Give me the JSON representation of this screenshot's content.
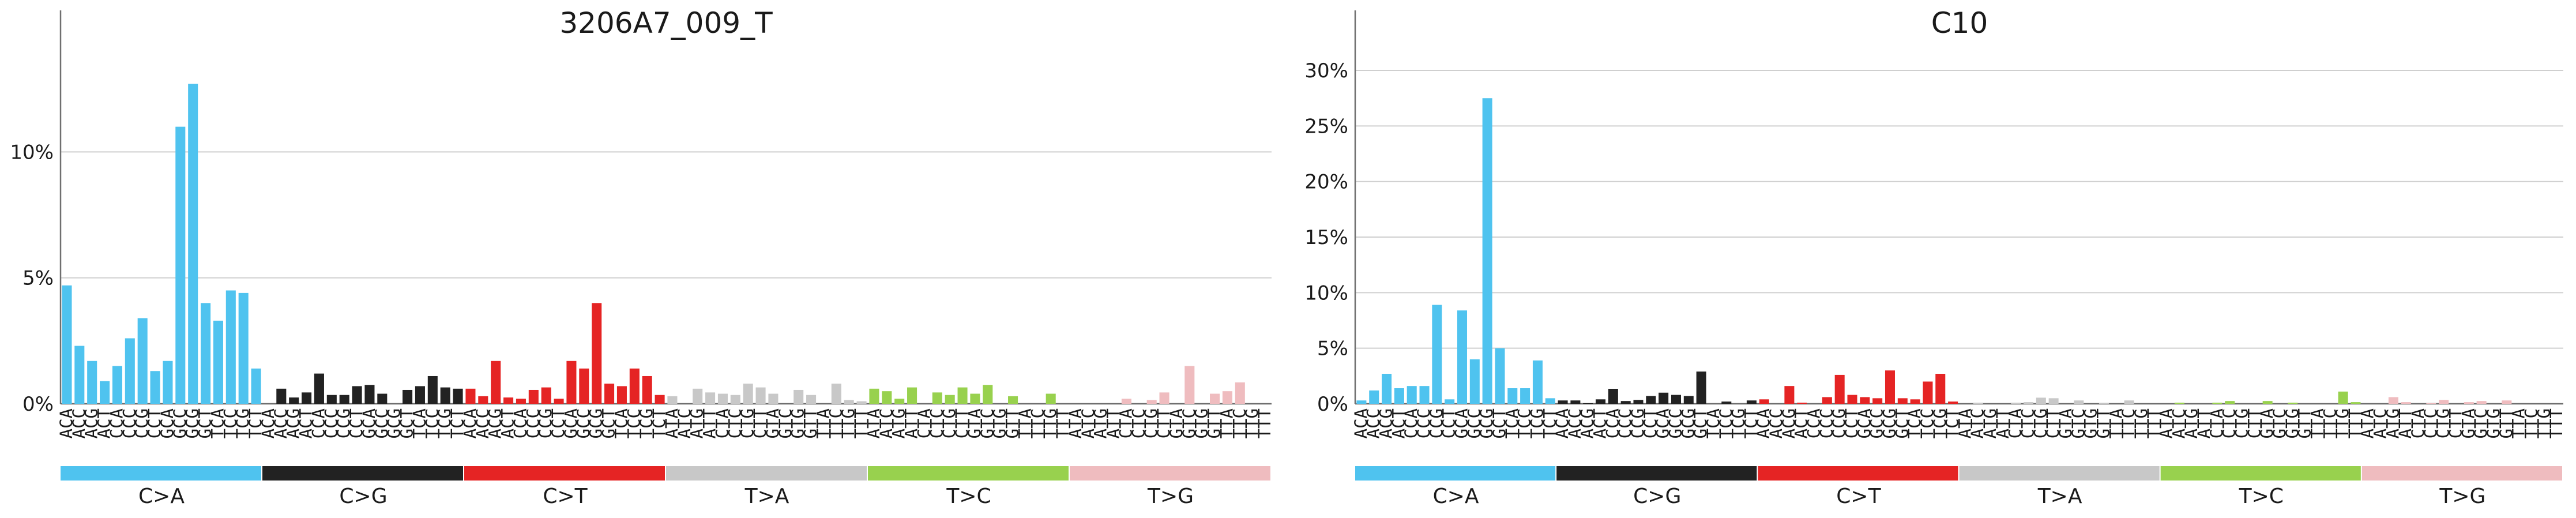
{
  "palette": [
    "#4fc3ef",
    "#222222",
    "#e52424",
    "#c8c8c8",
    "#98d14e",
    "#efbcbf"
  ],
  "groups": [
    "C>A",
    "C>G",
    "C>T",
    "T>A",
    "T>C",
    "T>G"
  ],
  "chart_data": [
    {
      "type": "bar",
      "title": "3206A7_009_T",
      "ylim": [
        0,
        15
      ],
      "yticks": [
        0,
        5,
        10
      ],
      "ytick_labels": [
        "0%",
        "5%",
        "10%"
      ],
      "grid": true,
      "categories": [
        "ACA",
        "ACC",
        "ACG",
        "ACT",
        "CCA",
        "CCC",
        "CCG",
        "CCT",
        "GCA",
        "GCC",
        "GCG",
        "GCT",
        "TCA",
        "TCC",
        "TCG",
        "TCT",
        "ACA",
        "ACC",
        "ACG",
        "ACT",
        "CCA",
        "CCC",
        "CCG",
        "CCT",
        "GCA",
        "GCC",
        "GCG",
        "GCT",
        "TCA",
        "TCC",
        "TCG",
        "TCT",
        "ACA",
        "ACC",
        "ACG",
        "ACT",
        "CCA",
        "CCC",
        "CCG",
        "CCT",
        "GCA",
        "GCC",
        "GCG",
        "GCT",
        "TCA",
        "TCC",
        "TCG",
        "TCT",
        "ATA",
        "ATC",
        "ATG",
        "ATT",
        "CTA",
        "CTC",
        "CTG",
        "CTT",
        "GTA",
        "GTC",
        "GTG",
        "GTT",
        "TTA",
        "TTC",
        "TTG",
        "TTT",
        "ATA",
        "ATC",
        "ATG",
        "ATT",
        "CTA",
        "CTC",
        "CTG",
        "CTT",
        "GTA",
        "GTC",
        "GTG",
        "GTT",
        "TTA",
        "TTC",
        "TTG",
        "TTT",
        "ATA",
        "ATC",
        "ATG",
        "ATT",
        "CTA",
        "CTC",
        "CTG",
        "CTT",
        "GTA",
        "GTC",
        "GTG",
        "GTT",
        "TTA",
        "TTC",
        "TTG",
        "TTT"
      ],
      "values": [
        4.7,
        2.3,
        1.7,
        0.9,
        1.5,
        2.6,
        3.4,
        1.3,
        1.7,
        11.0,
        12.7,
        4.0,
        3.3,
        4.5,
        4.4,
        1.4,
        0,
        0.6,
        0.25,
        0.45,
        1.2,
        0.35,
        0.35,
        0.7,
        0.75,
        0.4,
        0,
        0.55,
        0.7,
        1.1,
        0.65,
        0.6,
        0.6,
        0.3,
        1.7,
        0.25,
        0.2,
        0.55,
        0.65,
        0.2,
        1.7,
        1.4,
        4.0,
        0.8,
        0.7,
        1.4,
        1.1,
        0.35,
        0.3,
        0,
        0.6,
        0.45,
        0.4,
        0.35,
        0.8,
        0.65,
        0.4,
        0,
        0.55,
        0.35,
        0,
        0.8,
        0.15,
        0.1,
        0.6,
        0.5,
        0.2,
        0.65,
        0,
        0.45,
        0.35,
        0.65,
        0.4,
        0.75,
        0,
        0.3,
        0,
        0,
        0.4,
        0,
        0,
        0,
        0,
        0,
        0.2,
        0,
        0.15,
        0.45,
        0,
        1.5,
        0,
        0.4,
        0.5,
        0.85,
        0,
        0
      ]
    },
    {
      "type": "bar",
      "title": "C10",
      "ylim": [
        0,
        34
      ],
      "yticks": [
        0,
        5,
        10,
        15,
        20,
        25,
        30
      ],
      "ytick_labels": [
        "0%",
        "5%",
        "10%",
        "15%",
        "20%",
        "25%",
        "30%"
      ],
      "grid": true,
      "categories": [
        "ACA",
        "ACC",
        "ACG",
        "ACT",
        "CCA",
        "CCC",
        "CCG",
        "CCT",
        "GCA",
        "GCC",
        "GCG",
        "GCT",
        "TCA",
        "TCC",
        "TCG",
        "TCT",
        "ACA",
        "ACC",
        "ACG",
        "ACT",
        "CCA",
        "CCC",
        "CCG",
        "CCT",
        "GCA",
        "GCC",
        "GCG",
        "GCT",
        "TCA",
        "TCC",
        "TCG",
        "TCT",
        "ACA",
        "ACC",
        "ACG",
        "ACT",
        "CCA",
        "CCC",
        "CCG",
        "CCT",
        "GCA",
        "GCC",
        "GCG",
        "GCT",
        "TCA",
        "TCC",
        "TCG",
        "TCT",
        "ATA",
        "ATC",
        "ATG",
        "ATT",
        "CTA",
        "CTC",
        "CTG",
        "CTT",
        "GTA",
        "GTC",
        "GTG",
        "GTT",
        "TTA",
        "TTC",
        "TTG",
        "TTT",
        "ATA",
        "ATC",
        "ATG",
        "ATT",
        "CTA",
        "CTC",
        "CTG",
        "CTT",
        "GTA",
        "GTC",
        "GTG",
        "GTT",
        "TTA",
        "TTC",
        "TTG",
        "TTT",
        "ATA",
        "ATC",
        "ATG",
        "ATT",
        "CTA",
        "CTC",
        "CTG",
        "CTT",
        "GTA",
        "GTC",
        "GTG",
        "GTT",
        "TTA",
        "TTC",
        "TTG",
        "TTT"
      ],
      "values": [
        0.3,
        1.2,
        2.7,
        1.4,
        1.6,
        1.6,
        8.9,
        0.4,
        8.4,
        4.0,
        27.5,
        5.0,
        1.4,
        1.4,
        3.9,
        0.5,
        0.3,
        0.3,
        0.05,
        0.4,
        1.35,
        0.25,
        0.35,
        0.7,
        1.0,
        0.8,
        0.7,
        2.9,
        0,
        0.2,
        0,
        0.3,
        0.4,
        0,
        1.6,
        0.1,
        0,
        0.6,
        2.6,
        0.8,
        0.6,
        0.5,
        3.0,
        0.5,
        0.4,
        2.0,
        2.7,
        0.2,
        0,
        0.1,
        0,
        0,
        0.1,
        0.15,
        0.55,
        0.5,
        0,
        0.3,
        0,
        0.05,
        0,
        0.3,
        0,
        0,
        0,
        0.1,
        0,
        0,
        0.1,
        0.25,
        0,
        0,
        0.25,
        0,
        0.1,
        0,
        0,
        0,
        1.1,
        0.15,
        0,
        0,
        0.6,
        0.15,
        0,
        0.05,
        0.35,
        0,
        0.15,
        0.25,
        0,
        0.3,
        0,
        0,
        0,
        0
      ]
    }
  ]
}
